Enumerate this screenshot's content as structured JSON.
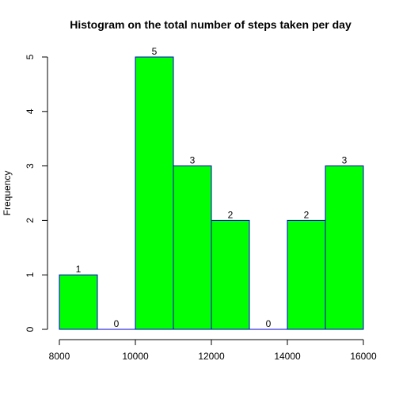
{
  "chart_data": {
    "type": "bar",
    "title": "Histogram on the total number of steps taken per day",
    "xlabel": "",
    "ylabel": "Frequency",
    "bins": [
      {
        "start": 8000,
        "end": 9000,
        "count": 1
      },
      {
        "start": 9000,
        "end": 10000,
        "count": 0
      },
      {
        "start": 10000,
        "end": 11000,
        "count": 5
      },
      {
        "start": 11000,
        "end": 12000,
        "count": 3
      },
      {
        "start": 12000,
        "end": 13000,
        "count": 2
      },
      {
        "start": 13000,
        "end": 14000,
        "count": 0
      },
      {
        "start": 14000,
        "end": 15000,
        "count": 2
      },
      {
        "start": 15000,
        "end": 16000,
        "count": 3
      }
    ],
    "xlim": [
      8000,
      16000
    ],
    "ylim": [
      0,
      5
    ],
    "xticks": [
      8000,
      10000,
      12000,
      14000,
      16000
    ],
    "yticks": [
      0,
      1,
      2,
      3,
      4,
      5
    ],
    "bar_color": "#00ff00",
    "bar_border_color": "#0000cc",
    "grid": false,
    "legend": "none"
  }
}
